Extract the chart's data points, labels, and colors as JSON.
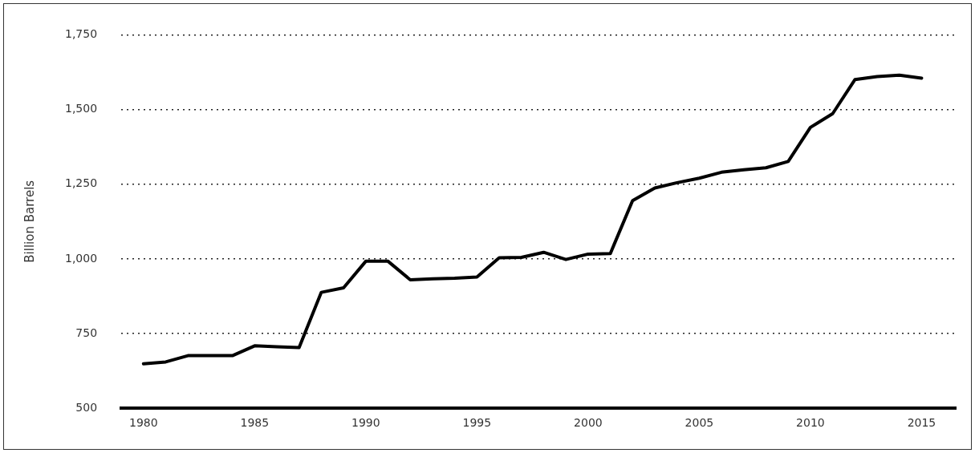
{
  "chart_data": {
    "type": "line",
    "ylabel": "Billion Barrels",
    "x": [
      1980,
      1981,
      1982,
      1983,
      1984,
      1985,
      1986,
      1987,
      1988,
      1989,
      1990,
      1991,
      1992,
      1993,
      1994,
      1995,
      1996,
      1997,
      1998,
      1999,
      2000,
      2001,
      2002,
      2003,
      2004,
      2005,
      2006,
      2007,
      2008,
      2009,
      2010,
      2011,
      2012,
      2013,
      2014,
      2015
    ],
    "series": [
      {
        "color": "#000000",
        "values": [
          649,
          655,
          676,
          676,
          676,
          709,
          706,
          703,
          888,
          903,
          992,
          992,
          930,
          933,
          935,
          939,
          1004,
          1005,
          1022,
          998,
          1016,
          1018,
          1195,
          1237,
          1255,
          1270,
          1290,
          1298,
          1305,
          1326,
          1440,
          1486,
          1600,
          1610,
          1615,
          1605
        ]
      }
    ],
    "xlim": [
      1979,
      2016.5
    ],
    "xticks": [
      1980,
      1985,
      1990,
      1995,
      2000,
      2005,
      2010,
      2015
    ],
    "ylim": [
      500,
      1750
    ],
    "yticks": [
      500,
      {
        "value": 750,
        "label": "750"
      },
      {
        "value": 1000,
        "label": "1,000"
      },
      {
        "value": 1250,
        "label": "1,250"
      },
      {
        "value": 1500,
        "label": "1,500"
      },
      {
        "value": 1750,
        "label": "1,750"
      }
    ],
    "grid": "y",
    "marker": "none",
    "line_style": "solid",
    "legend": false
  }
}
